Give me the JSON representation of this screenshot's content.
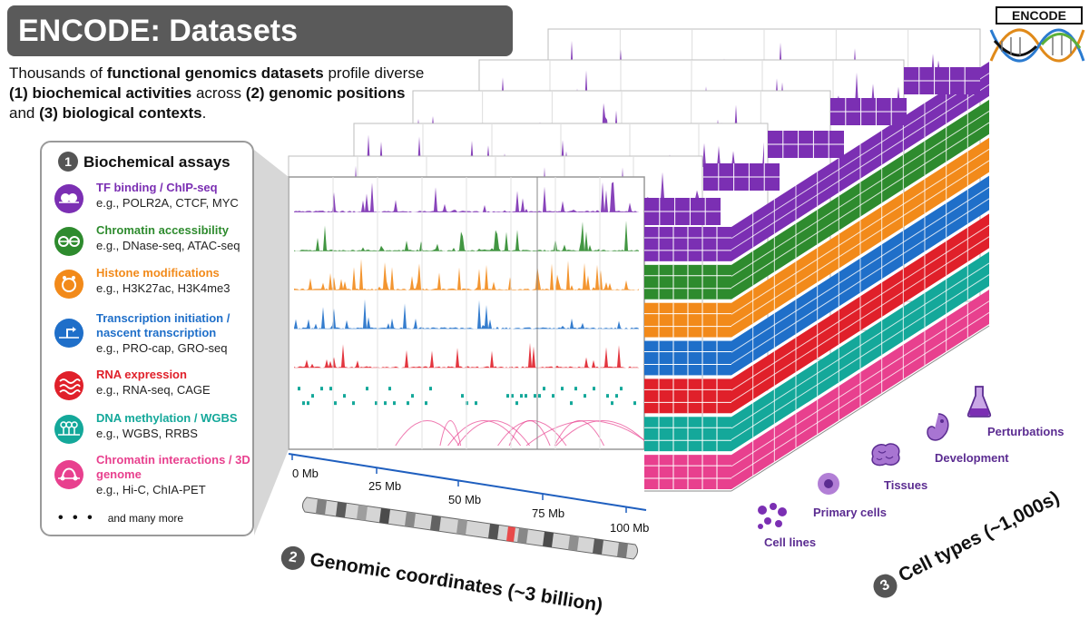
{
  "title": "ENCODE: Datasets",
  "intro": {
    "p1": "Thousands of ",
    "b1": "functional genomics datasets",
    "p2": " profile diverse ",
    "b2": "(1) biochemical activities",
    "p3": " across ",
    "b3": "(2) genomic positions",
    "p4": " and ",
    "b4": "(3) biological contexts",
    "p5": "."
  },
  "logo": {
    "text": "ENCODE"
  },
  "assays": {
    "number": "1",
    "heading": "Biochemical assays",
    "items": [
      {
        "name": "TF binding / ChIP-seq",
        "examples": "e.g., POLR2A, CTCF, MYC",
        "color": "#7b2fb3"
      },
      {
        "name": "Chromatin accessibility",
        "examples": "e.g., DNase-seq, ATAC-seq",
        "color": "#2e8b2e"
      },
      {
        "name": "Histone modifications",
        "examples": "e.g., H3K27ac, H3K4me3",
        "color": "#f28a1a"
      },
      {
        "name": "Transcription initiation / nascent transcription",
        "examples": "e.g., PRO-cap, GRO-seq",
        "color": "#1f6fc9"
      },
      {
        "name": "RNA expression",
        "examples": "e.g., RNA-seq, CAGE",
        "color": "#e0202a"
      },
      {
        "name": "DNA methylation / WGBS",
        "examples": "e.g., WGBS, RRBS",
        "color": "#14a89a"
      },
      {
        "name": "Chromatin interactions / 3D genome",
        "examples": "e.g., Hi-C, ChIA-PET",
        "color": "#e8408e"
      }
    ],
    "more_dots": "• • •",
    "more": "and many more"
  },
  "genome_axis": {
    "ticks": [
      "0 Mb",
      "25 Mb",
      "50 Mb",
      "75 Mb",
      "100 Mb"
    ]
  },
  "genomic_label": {
    "number": "2",
    "text": "Genomic coordinates (~3 billion)"
  },
  "celltype_label": {
    "number": "3",
    "text": "Cell types (~1,000s)"
  },
  "contexts": [
    "Cell lines",
    "Primary cells",
    "Tissues",
    "Development",
    "Perturbations"
  ],
  "context_color": "#5b2c91",
  "panel_colors": [
    "#7b2fb3",
    "#2e8b2e",
    "#f28a1a",
    "#1f6fc9",
    "#e0202a",
    "#14a89a",
    "#e8408e"
  ]
}
